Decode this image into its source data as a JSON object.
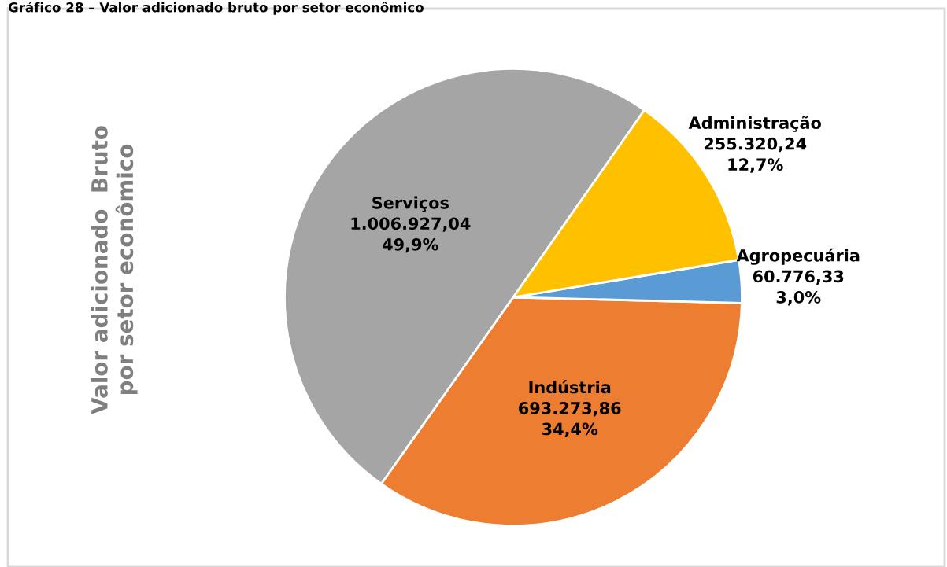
{
  "chart_data": {
    "type": "pie",
    "title": "Gráfico 28 – Valor adicionado bruto por setor econômico",
    "ylabel": "Valor adicionado  Bruto\npor setor econômico",
    "categories": [
      "Serviços",
      "Indústria",
      "Agropecuária",
      "Administração"
    ],
    "values": [
      1006927.04,
      693273.86,
      60776.33,
      255320.24
    ],
    "value_labels": [
      "1.006.927,04\n49,9%",
      "693.273,86\n34,4%",
      "60.776,33\n3,0%",
      "255.320,24\n12,7%"
    ],
    "colors": [
      "#a5a5a5",
      "#ed7d31",
      "#5b9bd5",
      "#ffc000"
    ],
    "legend": false
  }
}
